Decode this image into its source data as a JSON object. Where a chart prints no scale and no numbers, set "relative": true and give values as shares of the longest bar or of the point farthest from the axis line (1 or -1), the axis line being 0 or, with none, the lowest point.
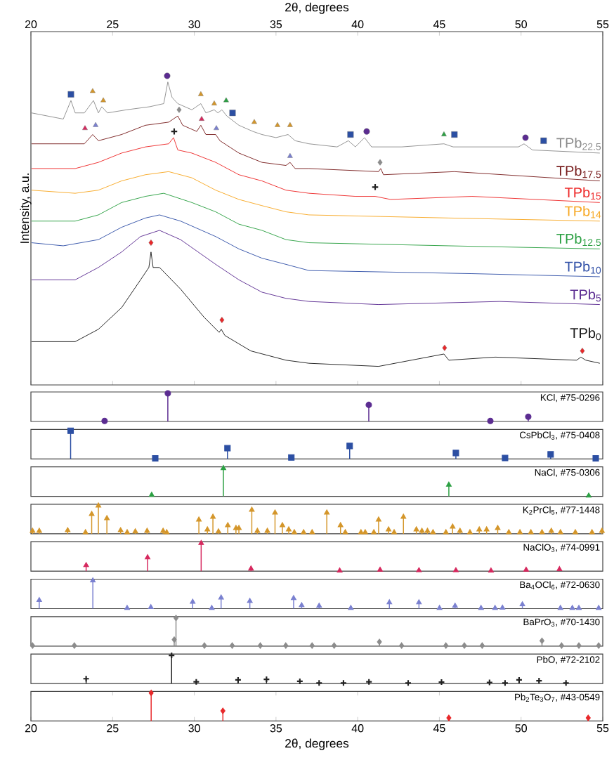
{
  "chart_data": [
    {
      "type": "line",
      "relative": true,
      "xlabel": "2θ, degrees",
      "ylabel": "Intensity, a.u.",
      "xlim": [
        20,
        55
      ],
      "xticks": [
        20,
        25,
        30,
        35,
        40,
        45,
        50,
        55
      ],
      "tick_labels": "x",
      "series": [
        {
          "name": "TPb$_{22.5}$",
          "color": "#8c8c8c",
          "x": [
            20.04,
            21.98,
            22.45,
            22.71,
            23.27,
            23.83,
            24.13,
            24.34,
            24.69,
            25.85,
            27.27,
            28.13,
            28.38,
            28.64,
            28.99,
            29.85,
            30.4,
            30.71,
            31.22,
            31.44,
            31.69,
            31.99,
            32.73,
            33.59,
            34.14,
            35.0,
            35.74,
            36.17,
            37.02,
            38.74,
            39.43,
            39.86,
            40.42,
            40.85,
            42.7,
            45.28,
            45.84,
            49.84,
            50.18,
            50.7,
            54.82
          ],
          "values": [
            0.88,
            0.86,
            0.92,
            0.88,
            0.88,
            0.92,
            0.88,
            0.9,
            0.88,
            0.89,
            0.9,
            0.91,
            0.98,
            0.93,
            0.91,
            0.89,
            0.91,
            0.88,
            0.89,
            0.88,
            0.89,
            0.87,
            0.84,
            0.82,
            0.81,
            0.8,
            0.81,
            0.79,
            0.78,
            0.77,
            0.79,
            0.77,
            0.8,
            0.77,
            0.77,
            0.78,
            0.77,
            0.77,
            0.78,
            0.76,
            0.75
          ]
        },
        {
          "name": "TPb$_{17.5}$",
          "color": "#7a2020",
          "x": [
            20.04,
            23.27,
            23.78,
            24.13,
            25.55,
            27.01,
            28.43,
            28.99,
            29.29,
            30.15,
            30.4,
            30.71,
            31.31,
            31.57,
            32.73,
            34.14,
            35.61,
            35.86,
            36.17,
            37.02,
            41.28,
            41.41,
            41.58,
            45.92,
            54.82
          ],
          "values": [
            0.78,
            0.78,
            0.81,
            0.79,
            0.81,
            0.84,
            0.85,
            0.87,
            0.84,
            0.82,
            0.84,
            0.81,
            0.81,
            0.79,
            0.75,
            0.72,
            0.71,
            0.72,
            0.7,
            0.7,
            0.69,
            0.7,
            0.68,
            0.69,
            0.66
          ]
        },
        {
          "name": "TPb$_{15}$",
          "color": "#ee2a2a",
          "x": [
            20.04,
            22.71,
            24.13,
            25.55,
            27.01,
            28.43,
            28.73,
            28.99,
            29.85,
            31.31,
            32.73,
            34.14,
            35.61,
            37.02,
            39.86,
            41.07,
            42.01,
            47.0,
            54.82
          ],
          "values": [
            0.7,
            0.7,
            0.72,
            0.75,
            0.77,
            0.78,
            0.8,
            0.76,
            0.75,
            0.72,
            0.68,
            0.66,
            0.63,
            0.62,
            0.61,
            0.61,
            0.6,
            0.61,
            0.59
          ]
        },
        {
          "name": "TPb$_{14}$",
          "color": "#f7a823",
          "x": [
            20.04,
            22.71,
            24.13,
            25.55,
            27.01,
            28.43,
            29.85,
            31.31,
            32.73,
            34.14,
            35.61,
            37.02,
            45.58,
            54.82
          ],
          "values": [
            0.63,
            0.62,
            0.63,
            0.66,
            0.68,
            0.69,
            0.67,
            0.63,
            0.6,
            0.58,
            0.56,
            0.55,
            0.54,
            0.53
          ]
        },
        {
          "name": "TPb$_{12.5}$",
          "color": "#2ca043",
          "x": [
            20.04,
            22.71,
            24.13,
            25.55,
            27.01,
            28.13,
            29.85,
            31.31,
            32.73,
            34.14,
            35.61,
            37.02,
            45.58,
            54.82
          ],
          "values": [
            0.53,
            0.53,
            0.55,
            0.59,
            0.61,
            0.62,
            0.59,
            0.56,
            0.52,
            0.5,
            0.47,
            0.46,
            0.45,
            0.44
          ]
        },
        {
          "name": "TPb$_{10}$",
          "color": "#3352a8",
          "x": [
            20.04,
            21.98,
            24.13,
            25.55,
            27.01,
            27.87,
            29.16,
            31.31,
            32.73,
            34.14,
            35.61,
            37.02,
            47.0,
            54.82
          ],
          "values": [
            0.46,
            0.45,
            0.47,
            0.51,
            0.54,
            0.55,
            0.53,
            0.48,
            0.44,
            0.41,
            0.39,
            0.37,
            0.36,
            0.35
          ]
        },
        {
          "name": "TPb$_{5}$",
          "color": "#5b2c91",
          "x": [
            20.04,
            22.71,
            24.13,
            25.55,
            26.71,
            27.87,
            29.16,
            31.31,
            32.73,
            34.14,
            35.61,
            37.02,
            41.28,
            48.68,
            54.82
          ],
          "values": [
            0.34,
            0.34,
            0.38,
            0.43,
            0.48,
            0.5,
            0.47,
            0.39,
            0.34,
            0.3,
            0.28,
            0.27,
            0.26,
            0.27,
            0.26
          ]
        },
        {
          "name": "TPb$_{0}$",
          "color": "#1a1a1a",
          "x": [
            20.04,
            22.71,
            24.13,
            25.55,
            26.71,
            27.22,
            27.35,
            27.48,
            27.87,
            29.16,
            30.58,
            31.52,
            31.65,
            31.87,
            33.46,
            35.61,
            37.02,
            41.28,
            45.28,
            45.58,
            48.42,
            53.4,
            53.66,
            53.96,
            54.82
          ],
          "values": [
            0.14,
            0.14,
            0.18,
            0.25,
            0.34,
            0.38,
            0.43,
            0.38,
            0.38,
            0.31,
            0.22,
            0.17,
            0.18,
            0.16,
            0.11,
            0.08,
            0.07,
            0.06,
            0.1,
            0.08,
            0.09,
            0.08,
            0.09,
            0.08,
            0.07
          ]
        },
        {
          "type": "scatter",
          "marker": "circle",
          "color": "#5b2c91",
          "x": [
            28.34,
            40.55,
            50.27
          ],
          "values": [
            1.0,
            0.82,
            0.8
          ]
        },
        {
          "type": "scatter",
          "marker": "square",
          "color": "#2c4fa3",
          "x": [
            22.45,
            32.34,
            39.56,
            45.92,
            51.38
          ],
          "values": [
            0.94,
            0.88,
            0.81,
            0.81,
            0.79
          ]
        },
        {
          "type": "scatter",
          "marker": "triangle",
          "color": "#2ca043",
          "x": [
            31.95,
            45.28
          ],
          "values": [
            0.92,
            0.81
          ]
        },
        {
          "type": "scatter",
          "marker": "triangle",
          "color": "#d4962a",
          "x": [
            23.78,
            24.43,
            30.4,
            31.22,
            33.67,
            35.09,
            35.86
          ],
          "values": [
            0.95,
            0.92,
            0.94,
            0.91,
            0.85,
            0.84,
            0.84
          ]
        },
        {
          "type": "scatter",
          "marker": "triangle",
          "color": "#d6285e",
          "x": [
            23.31,
            30.45
          ],
          "values": [
            0.83,
            0.86
          ]
        },
        {
          "type": "scatter",
          "marker": "triangle",
          "color": "#7a80d0",
          "x": [
            23.96,
            31.35,
            35.86
          ],
          "values": [
            0.84,
            0.83,
            0.74
          ]
        },
        {
          "type": "scatter",
          "marker": "diamond",
          "color": "#8c8c8c",
          "x": [
            29.07,
            41.37
          ],
          "values": [
            0.89,
            0.72
          ]
        },
        {
          "type": "scatter",
          "marker": "cross",
          "color": "#222222",
          "x": [
            28.77,
            41.07
          ],
          "values": [
            0.82,
            0.64
          ]
        },
        {
          "type": "scatter",
          "marker": "diamond",
          "color": "#e8282a",
          "x": [
            27.35,
            31.69,
            45.32,
            53.75
          ],
          "values": [
            0.46,
            0.21,
            0.12,
            0.11
          ]
        }
      ]
    },
    {
      "type": "lollipop",
      "relative": true,
      "title": "KCl, #75-0296",
      "xlim": [
        20,
        55
      ],
      "tick_labels": false,
      "marker": "circle",
      "color": "#5b2c91",
      "x": [
        24.51,
        28.38,
        40.68,
        48.12,
        50.44
      ],
      "values": [
        0.02,
        1,
        0.59,
        0.02,
        0.17
      ]
    },
    {
      "type": "lollipop",
      "relative": true,
      "title": "CsPbCl$_{3}$, #75-0408",
      "xlim": [
        20,
        55
      ],
      "tick_labels": false,
      "marker": "square",
      "color": "#2c4fa3",
      "x": [
        22.43,
        27.61,
        32.03,
        35.94,
        39.51,
        46.01,
        49.02,
        51.81,
        54.57
      ],
      "values": [
        1,
        0.02,
        0.38,
        0.05,
        0.46,
        0.21,
        0.03,
        0.16,
        0.02
      ]
    },
    {
      "type": "lollipop",
      "relative": true,
      "title": "NaCl, #75-0306",
      "xlim": [
        20,
        55
      ],
      "tick_labels": false,
      "marker": "triangle",
      "color": "#2ca043",
      "x": [
        27.39,
        31.78,
        45.58,
        54.14
      ],
      "values": [
        0.05,
        1,
        0.41,
        0.02
      ]
    },
    {
      "type": "lollipop",
      "relative": true,
      "title": "K$_{2}$PrCl$_{5}$, #77-1448",
      "xlim": [
        20,
        55
      ],
      "tick_labels": false,
      "marker": "triangle",
      "color": "#d4962a",
      "x": [
        20.1,
        20.51,
        22.25,
        23.34,
        23.72,
        24.13,
        24.65,
        25.49,
        25.89,
        26.39,
        27.11,
        28.09,
        28.31,
        30.28,
        30.8,
        31.14,
        31.48,
        32.05,
        32.55,
        32.73,
        33.52,
        33.86,
        34.47,
        34.94,
        35.39,
        35.78,
        36.12,
        36.69,
        37.21,
        38.11,
        38.95,
        39.24,
        40.2,
        40.46,
        40.99,
        41.28,
        41.89,
        42.23,
        42.8,
        43.59,
        43.93,
        44.27,
        44.61,
        45.4,
        45.81,
        46.26,
        46.87,
        47.44,
        47.89,
        48.57,
        49.25,
        49.93,
        50.6,
        51.28,
        51.85,
        52.41,
        53.32,
        54.34,
        54.95
      ],
      "values": [
        0.1,
        0.1,
        0.12,
        0.05,
        0.7,
        1,
        0.55,
        0.12,
        0.05,
        0.08,
        0.1,
        0.1,
        0.05,
        0.5,
        0.15,
        0.6,
        0.08,
        0.3,
        0.2,
        0.2,
        0.85,
        0.1,
        0.1,
        0.75,
        0.3,
        0.15,
        0.05,
        0.05,
        0.05,
        0.75,
        0.3,
        0.05,
        0.05,
        0.05,
        0.05,
        0.5,
        0.15,
        0.05,
        0.6,
        0.15,
        0.1,
        0.1,
        0.05,
        0.05,
        0.25,
        0.1,
        0.05,
        0.15,
        0.15,
        0.2,
        0.05,
        0.05,
        0.05,
        0.05,
        0.1,
        0.05,
        0.05,
        0.05,
        0.1
      ]
    },
    {
      "type": "lollipop",
      "relative": true,
      "title": "NaClO$_{3}$, #74-0991",
      "xlim": [
        20,
        55
      ],
      "tick_labels": false,
      "marker": "triangle",
      "color": "#d6285e",
      "x": [
        23.38,
        27.14,
        30.42,
        33.47,
        38.9,
        41.37,
        43.75,
        46.01,
        48.16,
        50.31,
        52.35
      ],
      "values": [
        0.21,
        0.49,
        1,
        0.09,
        0.02,
        0.05,
        0.03,
        0.03,
        0.02,
        0.05,
        0.07
      ]
    },
    {
      "type": "lollipop",
      "relative": true,
      "title": "Ba$_{4}$OCl$_{6}$, #72-0630",
      "xlim": [
        20,
        55
      ],
      "tick_labels": false,
      "marker": "triangle",
      "color": "#7a80d0",
      "x": [
        20.51,
        23.79,
        25.89,
        27.34,
        29.9,
        31.07,
        31.64,
        33.4,
        36.08,
        36.57,
        37.64,
        39.58,
        41.94,
        43.75,
        45.01,
        45.96,
        47.55,
        48.41,
        48.86,
        50.08,
        52.41,
        53.14,
        53.54,
        54.75
      ],
      "values": [
        0.3,
        1,
        0.02,
        0.05,
        0.24,
        0.02,
        0.39,
        0.27,
        0.37,
        0.12,
        0.1,
        0.02,
        0.22,
        0.22,
        0.02,
        0.1,
        0.02,
        0.02,
        0.03,
        0.15,
        0.02,
        0.02,
        0.02,
        0.02
      ]
    },
    {
      "type": "lollipop",
      "relative": true,
      "title": "BaPrO$_{3}$, #70-1430",
      "xlim": [
        20,
        55
      ],
      "tick_labels": false,
      "marker": "diamond",
      "color": "#8c8c8c",
      "x": [
        20.1,
        22.66,
        28.77,
        28.88,
        30.62,
        32.32,
        34.04,
        35.6,
        37.21,
        38.56,
        41.33,
        42.69,
        45.4,
        46.53,
        47.62,
        51.28,
        52.48,
        53.54,
        54.75
      ],
      "values": [
        0.02,
        0.02,
        0.23,
        1,
        0.02,
        0.02,
        0.02,
        0.02,
        0.02,
        0.02,
        0.15,
        0.02,
        0.02,
        0.02,
        0.02,
        0.19,
        0.02,
        0.02,
        0.02
      ]
    },
    {
      "type": "lollipop",
      "relative": true,
      "title": "PbO, #72-2102",
      "xlim": [
        20,
        55
      ],
      "tick_labels": false,
      "marker": "cross",
      "color": "#222222",
      "x": [
        23.38,
        28.61,
        30.12,
        32.68,
        34.42,
        36.46,
        37.64,
        39.13,
        40.69,
        43.09,
        45.13,
        48.07,
        49.02,
        49.88,
        51.1,
        52.75
      ],
      "values": [
        0.17,
        1,
        0.06,
        0.13,
        0.15,
        0.08,
        0.02,
        0.02,
        0.06,
        0.02,
        0.05,
        0.04,
        0.02,
        0.13,
        0.1,
        0.02
      ]
    },
    {
      "type": "lollipop",
      "relative": true,
      "title": "Pb$_{2}$Te$_{3}$O$_{7}$, #43-0549",
      "xlabel": "2θ, degrees",
      "xlim": [
        20,
        55
      ],
      "xticks": [
        20,
        25,
        30,
        35,
        40,
        45,
        50,
        55
      ],
      "marker": "diamond",
      "color": "#e8282a",
      "x": [
        27.36,
        31.75,
        45.58,
        54.11
      ],
      "values": [
        1,
        0.36,
        0.11,
        0.11
      ]
    }
  ]
}
